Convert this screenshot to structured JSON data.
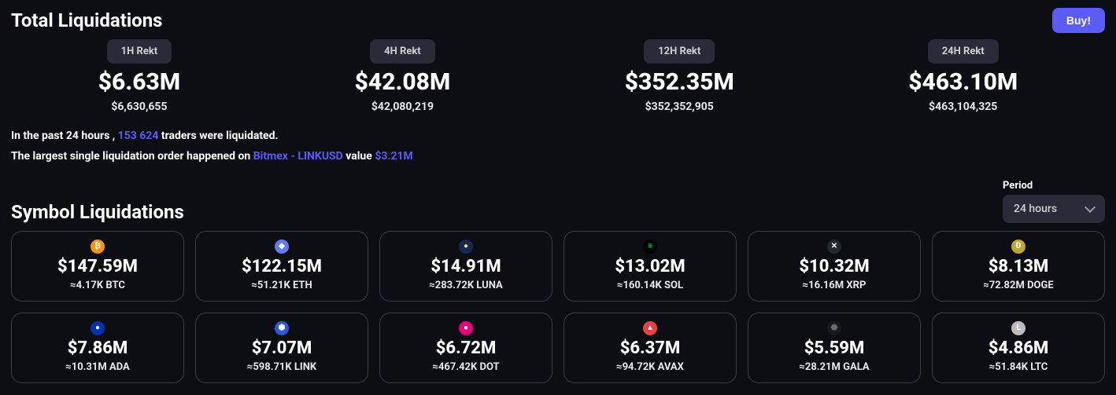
{
  "header": {
    "title": "Total Liquidations",
    "buy_label": "Buy!"
  },
  "totals": [
    {
      "period": "1H Rekt",
      "big": "$6.63M",
      "small": "$6,630,655"
    },
    {
      "period": "4H Rekt",
      "big": "$42.08M",
      "small": "$42,080,219"
    },
    {
      "period": "12H Rekt",
      "big": "$352.35M",
      "small": "$352,352,905"
    },
    {
      "period": "24H Rekt",
      "big": "$463.10M",
      "small": "$463,104,325"
    }
  ],
  "summary": {
    "line1_a": "In the past 24 hours , ",
    "line1_count": "153 624",
    "line1_b": " traders were liquidated.",
    "line2_a": "The largest single liquidation order happened on ",
    "line2_exchange": "Bitmex - LINKUSD",
    "line2_b": " value ",
    "line2_value": "$3.21M"
  },
  "symbol_section": {
    "title": "Symbol Liquidations",
    "period_label": "Period",
    "period_value": "24 hours"
  },
  "symbols": [
    {
      "name": "BTC",
      "usd": "$147.59M",
      "approx": "≈4.17K BTC",
      "icon_bg": "#f7931a",
      "icon_fg": "#ffffff",
      "glyph": "₿"
    },
    {
      "name": "ETH",
      "usd": "$122.15M",
      "approx": "≈51.21K ETH",
      "icon_bg": "#627eea",
      "icon_fg": "#ffffff",
      "glyph": "◆"
    },
    {
      "name": "LUNA",
      "usd": "$14.91M",
      "approx": "≈283.72K LUNA",
      "icon_bg": "#172852",
      "icon_fg": "#f9d85e",
      "glyph": "●"
    },
    {
      "name": "SOL",
      "usd": "$13.02M",
      "approx": "≈160.14K SOL",
      "icon_bg": "#000000",
      "icon_fg": "#14f195",
      "glyph": "≡"
    },
    {
      "name": "XRP",
      "usd": "$10.32M",
      "approx": "≈16.16M XRP",
      "icon_bg": "#23292f",
      "icon_fg": "#ffffff",
      "glyph": "✕"
    },
    {
      "name": "DOGE",
      "usd": "$8.13M",
      "approx": "≈72.82M DOGE",
      "icon_bg": "#c2a633",
      "icon_fg": "#ffffff",
      "glyph": "Ð"
    },
    {
      "name": "ADA",
      "usd": "$7.86M",
      "approx": "≈10.31M ADA",
      "icon_bg": "#0033ad",
      "icon_fg": "#ffffff",
      "glyph": "●"
    },
    {
      "name": "LINK",
      "usd": "$7.07M",
      "approx": "≈598.71K LINK",
      "icon_bg": "#2a5ada",
      "icon_fg": "#ffffff",
      "glyph": "⬢"
    },
    {
      "name": "DOT",
      "usd": "$6.72M",
      "approx": "≈467.42K DOT",
      "icon_bg": "#e6007a",
      "icon_fg": "#ffffff",
      "glyph": "●"
    },
    {
      "name": "AVAX",
      "usd": "$6.37M",
      "approx": "≈94.72K AVAX",
      "icon_bg": "#e84142",
      "icon_fg": "#ffffff",
      "glyph": "▲"
    },
    {
      "name": "GALA",
      "usd": "$5.59M",
      "approx": "≈28.21M GALA",
      "icon_bg": "#1a1a1a",
      "icon_fg": "#6a6a6a",
      "glyph": "⬣"
    },
    {
      "name": "LTC",
      "usd": "$4.86M",
      "approx": "≈51.84K LTC",
      "icon_bg": "#bfbbbb",
      "icon_fg": "#ffffff",
      "glyph": "Ł"
    }
  ]
}
